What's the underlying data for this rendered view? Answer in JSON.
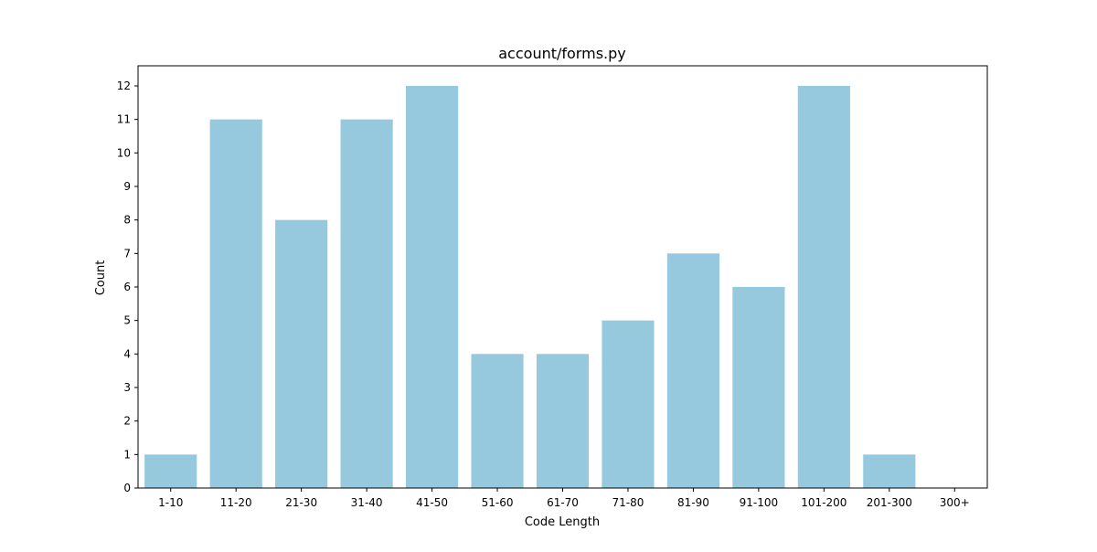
{
  "chart_data": {
    "type": "bar",
    "title": "account/forms.py",
    "xlabel": "Code Length",
    "ylabel": "Count",
    "categories": [
      "1-10",
      "11-20",
      "21-30",
      "31-40",
      "41-50",
      "51-60",
      "61-70",
      "71-80",
      "81-90",
      "91-100",
      "101-200",
      "201-300",
      "300+"
    ],
    "values": [
      1,
      11,
      8,
      11,
      12,
      4,
      4,
      5,
      7,
      6,
      12,
      1,
      0
    ],
    "ylim": [
      0,
      12.6
    ],
    "yticks": [
      0,
      1,
      2,
      3,
      4,
      5,
      6,
      7,
      8,
      9,
      10,
      11,
      12
    ],
    "grid": false,
    "bar_color": "#96c9de"
  }
}
